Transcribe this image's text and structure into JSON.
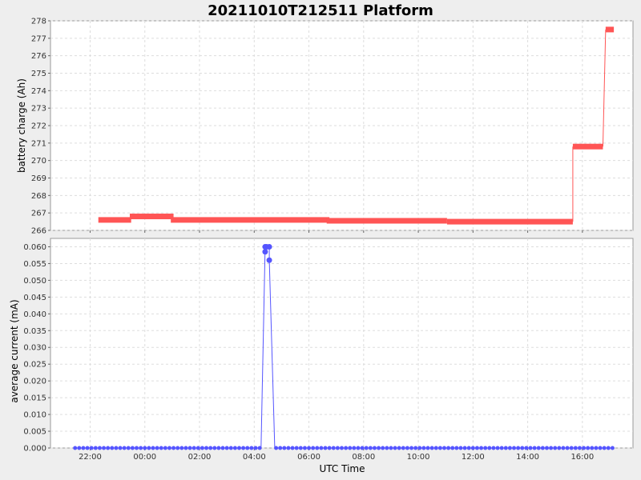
{
  "chart_data": {
    "type": "line",
    "title": "20211010T212511 Platform",
    "xlabel": "UTC Time",
    "x_ticks": [
      "22:00",
      "00:00",
      "02:00",
      "04:00",
      "06:00",
      "08:00",
      "10:00",
      "12:00",
      "14:00",
      "16:00"
    ],
    "x_tick_hours": [
      22,
      24,
      26,
      28,
      30,
      32,
      34,
      36,
      38,
      40
    ],
    "x_range_hours": [
      20.55,
      41.85
    ],
    "grid": true,
    "subplots": [
      {
        "ylabel": "battery charge (Ah)",
        "ylim": [
          266,
          278
        ],
        "y_ticks": [
          266,
          267,
          268,
          269,
          270,
          271,
          272,
          273,
          274,
          275,
          276,
          277,
          278
        ],
        "color": "#ff5555",
        "series": [
          {
            "segments": [
              {
                "x": [
                  22.3,
                  23.5
                ],
                "y": 266.6
              },
              {
                "x": [
                  23.45,
                  25.05
                ],
                "y": 266.8
              },
              {
                "x": [
                  24.95,
                  30.75
                ],
                "y": 266.6
              },
              {
                "x": [
                  30.65,
                  35.05
                ],
                "y": 266.55
              },
              {
                "x": [
                  35.05,
                  39.65
                ],
                "y": 266.5
              },
              {
                "x": [
                  39.65,
                  40.75
                ],
                "y": 270.8
              },
              {
                "x": [
                  40.85,
                  41.15
                ],
                "y": 277.5
              }
            ],
            "connectors": [
              [
                39.65,
                266.5,
                39.65,
                270.8
              ],
              [
                40.75,
                270.8,
                40.85,
                277.5
              ]
            ]
          }
        ]
      },
      {
        "ylabel": "average current (mA)",
        "ylim": [
          0,
          0.0625
        ],
        "y_ticks": [
          "0.000",
          "0.005",
          "0.010",
          "0.015",
          "0.020",
          "0.025",
          "0.030",
          "0.035",
          "0.040",
          "0.045",
          "0.050",
          "0.055",
          "0.060"
        ],
        "y_tick_values": [
          0,
          0.005,
          0.01,
          0.015,
          0.02,
          0.025,
          0.03,
          0.035,
          0.04,
          0.045,
          0.05,
          0.055,
          0.06
        ],
        "color": "#5555ff",
        "series": [
          {
            "x_start": 21.45,
            "x_end": 41.1,
            "step": 0.15,
            "zero_gaps": [
              [
                28.25,
                28.75
              ]
            ],
            "spike": {
              "x": [
                28.25,
                28.4,
                28.4,
                28.45,
                28.55,
                28.55,
                28.75
              ],
              "y": [
                0,
                0.06,
                0.0585,
                0.06,
                0.06,
                0.056,
                0
              ]
            }
          }
        ]
      }
    ]
  }
}
